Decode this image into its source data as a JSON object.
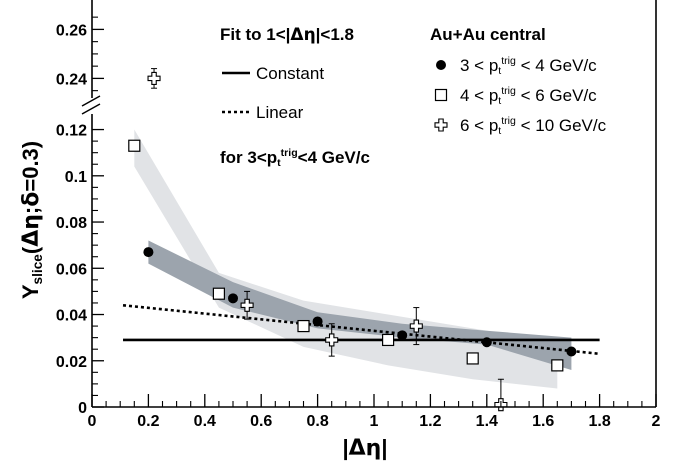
{
  "chart_data": {
    "type": "scatter",
    "xlabel_parts": [
      "|",
      "Δη",
      "|"
    ],
    "ylabel_parts": [
      "Y",
      "slice",
      "(",
      "Δη",
      ";",
      "δ",
      "=0.3)"
    ],
    "xlim": [
      0,
      2
    ],
    "ylim_lower": [
      0,
      0.125
    ],
    "ylim_upper": [
      0.232,
      0.272
    ],
    "x_ticks": [
      {
        "v": 0,
        "label": "0"
      },
      {
        "v": 0.2,
        "label": "0.2"
      },
      {
        "v": 0.4,
        "label": "0.4"
      },
      {
        "v": 0.6,
        "label": "0.6"
      },
      {
        "v": 0.8,
        "label": "0.8"
      },
      {
        "v": 1.0,
        "label": "1"
      },
      {
        "v": 1.2,
        "label": "1.2"
      },
      {
        "v": 1.4,
        "label": "1.4"
      },
      {
        "v": 1.6,
        "label": "1.6"
      },
      {
        "v": 1.8,
        "label": "1.8"
      },
      {
        "v": 2.0,
        "label": "2"
      }
    ],
    "y_ticks_lower": [
      {
        "v": 0,
        "label": "0"
      },
      {
        "v": 0.02,
        "label": "0.02"
      },
      {
        "v": 0.04,
        "label": "0.04"
      },
      {
        "v": 0.06,
        "label": "0.06"
      },
      {
        "v": 0.08,
        "label": "0.08"
      },
      {
        "v": 0.1,
        "label": "0.1"
      },
      {
        "v": 0.12,
        "label": "0.12"
      }
    ],
    "y_ticks_upper": [
      {
        "v": 0.24,
        "label": "0.24"
      },
      {
        "v": 0.26,
        "label": "0.26"
      }
    ],
    "annotation_lines": [
      [
        "Fit to 1<|",
        "Δη",
        "|<1.8"
      ],
      [
        "for 3<p",
        "t",
        "trig",
        "<4 GeV/c"
      ]
    ],
    "fit_legend": [
      {
        "style": "solid",
        "label": "Constant"
      },
      {
        "style": "dotted",
        "label": "Linear"
      }
    ],
    "series_legend_title": "Au+Au central",
    "series": [
      {
        "marker": "circle",
        "label_parts": [
          "3 < p",
          "t",
          "trig",
          " < 4 GeV/c"
        ],
        "points": [
          {
            "x": 0.2,
            "y": 0.067
          },
          {
            "x": 0.5,
            "y": 0.047
          },
          {
            "x": 0.8,
            "y": 0.037
          },
          {
            "x": 1.1,
            "y": 0.031
          },
          {
            "x": 1.4,
            "y": 0.028
          },
          {
            "x": 1.7,
            "y": 0.024
          }
        ]
      },
      {
        "marker": "square",
        "label_parts": [
          "4 < p",
          "t",
          "trig",
          " < 6 GeV/c"
        ],
        "points": [
          {
            "x": 0.15,
            "y": 0.113
          },
          {
            "x": 0.45,
            "y": 0.049
          },
          {
            "x": 0.75,
            "y": 0.035
          },
          {
            "x": 1.05,
            "y": 0.029
          },
          {
            "x": 1.35,
            "y": 0.021
          },
          {
            "x": 1.65,
            "y": 0.018
          }
        ]
      },
      {
        "marker": "cross",
        "label_parts": [
          "6 < p",
          "t",
          "trig",
          " < 10 GeV/c"
        ],
        "points": [
          {
            "x": 0.22,
            "y": 0.24,
            "err": 0.004
          },
          {
            "x": 0.55,
            "y": 0.044,
            "err": 0.006
          },
          {
            "x": 0.85,
            "y": 0.029,
            "err": 0.007
          },
          {
            "x": 1.15,
            "y": 0.035,
            "err": 0.008
          },
          {
            "x": 1.45,
            "y": 0.001,
            "err": 0.011
          }
        ]
      }
    ],
    "bands": [
      {
        "name": "band-4-6",
        "color": "#e1e3e6",
        "upper": [
          [
            0.15,
            0.12
          ],
          [
            0.45,
            0.058
          ],
          [
            0.75,
            0.046
          ],
          [
            1.05,
            0.04
          ],
          [
            1.35,
            0.034
          ],
          [
            1.65,
            0.028
          ]
        ],
        "lower": [
          [
            0.15,
            0.104
          ],
          [
            0.45,
            0.043
          ],
          [
            0.75,
            0.026
          ],
          [
            1.05,
            0.018
          ],
          [
            1.35,
            0.012
          ],
          [
            1.65,
            0.008
          ]
        ]
      },
      {
        "name": "band-3-4",
        "color": "#9ca4ad",
        "upper": [
          [
            0.2,
            0.072
          ],
          [
            0.5,
            0.054
          ],
          [
            0.8,
            0.041
          ],
          [
            1.1,
            0.036
          ],
          [
            1.4,
            0.033
          ],
          [
            1.7,
            0.03
          ]
        ],
        "lower": [
          [
            0.2,
            0.062
          ],
          [
            0.5,
            0.043
          ],
          [
            0.8,
            0.034
          ],
          [
            1.1,
            0.03
          ],
          [
            1.4,
            0.027
          ],
          [
            1.7,
            0.016
          ]
        ]
      }
    ],
    "constant_fit": {
      "x": [
        0.11,
        1.8
      ],
      "y": [
        0.029,
        0.029
      ]
    },
    "linear_fit": {
      "x": [
        0.11,
        1.8
      ],
      "y": [
        0.044,
        0.023
      ]
    },
    "colors": {
      "band_light": "#e1e3e6",
      "band_dark": "#9ca4ad",
      "line": "#000000"
    }
  }
}
